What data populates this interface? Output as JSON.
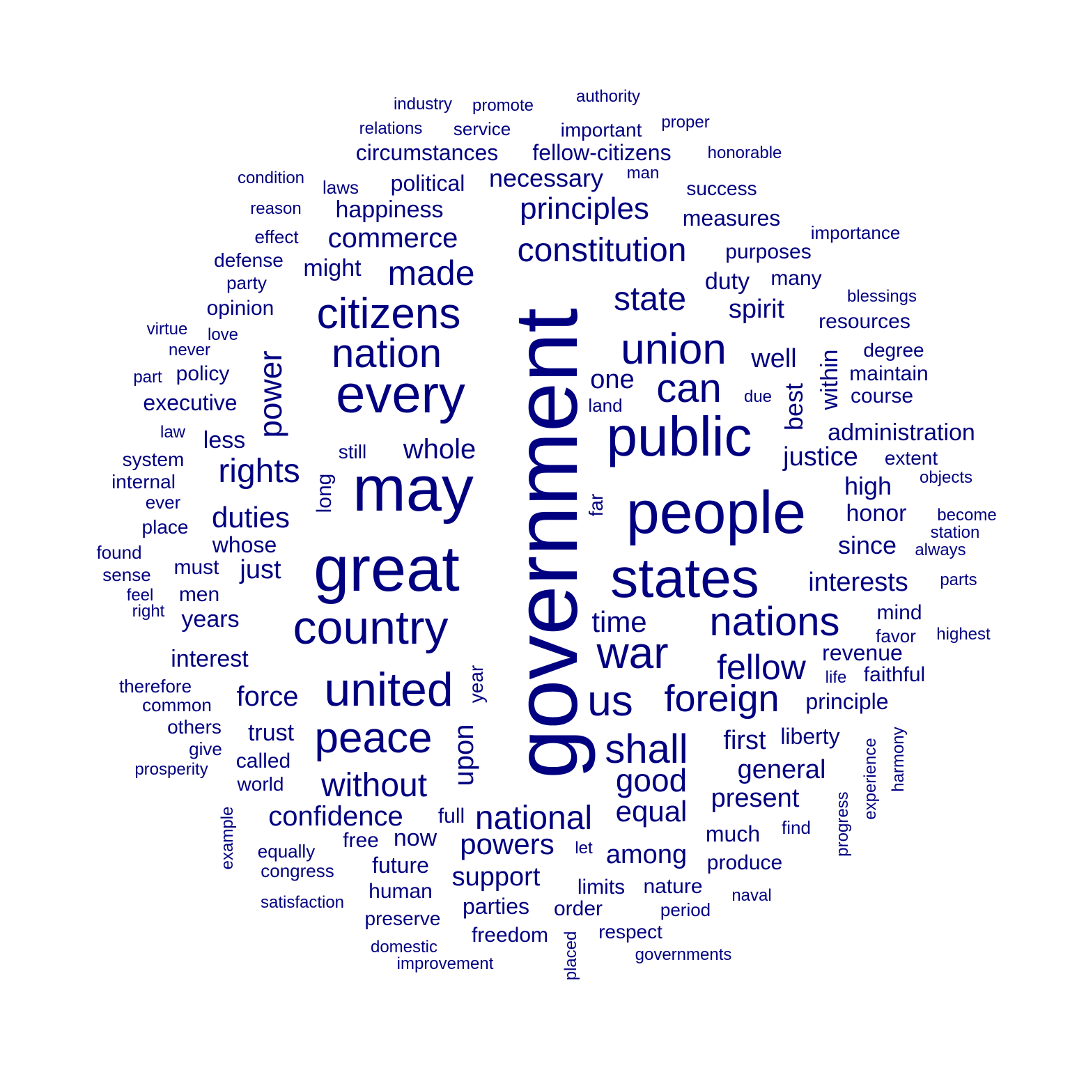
{
  "color": "#000080",
  "words": [
    {
      "text": "government"
    },
    {
      "text": "may"
    },
    {
      "text": "great"
    },
    {
      "text": "people"
    },
    {
      "text": "states"
    },
    {
      "text": "public"
    },
    {
      "text": "every"
    },
    {
      "text": "country"
    },
    {
      "text": "war"
    },
    {
      "text": "united"
    },
    {
      "text": "union"
    },
    {
      "text": "us"
    },
    {
      "text": "citizens"
    },
    {
      "text": "nation"
    },
    {
      "text": "peace"
    },
    {
      "text": "nations"
    },
    {
      "text": "can"
    },
    {
      "text": "foreign"
    },
    {
      "text": "shall"
    },
    {
      "text": "made"
    },
    {
      "text": "state"
    },
    {
      "text": "rights"
    },
    {
      "text": "fellow"
    },
    {
      "text": "national"
    },
    {
      "text": "constitution"
    },
    {
      "text": "without"
    },
    {
      "text": "good"
    },
    {
      "text": "power"
    },
    {
      "text": "principles"
    },
    {
      "text": "time"
    },
    {
      "text": "equal"
    },
    {
      "text": "upon"
    },
    {
      "text": "whole"
    },
    {
      "text": "confidence"
    },
    {
      "text": "powers"
    },
    {
      "text": "duties"
    },
    {
      "text": "force"
    },
    {
      "text": "commerce"
    },
    {
      "text": "among"
    },
    {
      "text": "present"
    },
    {
      "text": "interests"
    },
    {
      "text": "general"
    },
    {
      "text": "one"
    },
    {
      "text": "well"
    },
    {
      "text": "necessary"
    },
    {
      "text": "support"
    },
    {
      "text": "first"
    },
    {
      "text": "justice"
    },
    {
      "text": "spirit"
    },
    {
      "text": "best"
    },
    {
      "text": "just"
    },
    {
      "text": "high"
    },
    {
      "text": "happiness"
    },
    {
      "text": "within"
    },
    {
      "text": "since"
    },
    {
      "text": "administration"
    },
    {
      "text": "honor"
    },
    {
      "text": "duty"
    },
    {
      "text": "might"
    },
    {
      "text": "less"
    },
    {
      "text": "trust"
    },
    {
      "text": "years"
    },
    {
      "text": "interest"
    },
    {
      "text": "now"
    },
    {
      "text": "measures"
    },
    {
      "text": "revenue"
    },
    {
      "text": "liberty"
    },
    {
      "text": "principle"
    },
    {
      "text": "political"
    },
    {
      "text": "whose"
    },
    {
      "text": "much"
    },
    {
      "text": "executive"
    },
    {
      "text": "fellow-citizens"
    },
    {
      "text": "circumstances"
    },
    {
      "text": "long"
    },
    {
      "text": "must"
    },
    {
      "text": "men"
    },
    {
      "text": "parties"
    },
    {
      "text": "future"
    },
    {
      "text": "opinion"
    },
    {
      "text": "policy"
    },
    {
      "text": "order"
    },
    {
      "text": "limits"
    },
    {
      "text": "free"
    },
    {
      "text": "mind"
    },
    {
      "text": "nature"
    },
    {
      "text": "purposes"
    },
    {
      "text": "many"
    },
    {
      "text": "course"
    },
    {
      "text": "resources"
    },
    {
      "text": "maintain"
    },
    {
      "text": "produce"
    },
    {
      "text": "called"
    },
    {
      "text": "human"
    },
    {
      "text": "full"
    },
    {
      "text": "extent"
    },
    {
      "text": "faithful"
    },
    {
      "text": "success"
    },
    {
      "text": "system"
    },
    {
      "text": "freedom"
    },
    {
      "text": "important"
    },
    {
      "text": "degree"
    },
    {
      "text": "defense"
    },
    {
      "text": "year"
    },
    {
      "text": "still"
    },
    {
      "text": "place"
    },
    {
      "text": "internal"
    },
    {
      "text": "preserve"
    },
    {
      "text": "far"
    },
    {
      "text": "world"
    },
    {
      "text": "others"
    },
    {
      "text": "respect"
    },
    {
      "text": "period"
    },
    {
      "text": "found"
    },
    {
      "text": "party"
    },
    {
      "text": "service"
    },
    {
      "text": "equally"
    },
    {
      "text": "congress"
    },
    {
      "text": "laws"
    },
    {
      "text": "favor"
    },
    {
      "text": "land"
    },
    {
      "text": "effect"
    },
    {
      "text": "importance"
    },
    {
      "text": "ever"
    },
    {
      "text": "common"
    },
    {
      "text": "therefore"
    },
    {
      "text": "objects"
    },
    {
      "text": "station"
    },
    {
      "text": "become"
    },
    {
      "text": "always"
    },
    {
      "text": "relations"
    },
    {
      "text": "industry"
    },
    {
      "text": "promote"
    },
    {
      "text": "proper"
    },
    {
      "text": "authority"
    },
    {
      "text": "honorable"
    },
    {
      "text": "sense"
    },
    {
      "text": "give"
    },
    {
      "text": "find"
    },
    {
      "text": "experience"
    },
    {
      "text": "progress"
    },
    {
      "text": "harmony"
    },
    {
      "text": "blessings"
    },
    {
      "text": "governments"
    },
    {
      "text": "improvement"
    },
    {
      "text": "domestic"
    },
    {
      "text": "satisfaction"
    },
    {
      "text": "naval"
    },
    {
      "text": "placed"
    },
    {
      "text": "let"
    },
    {
      "text": "man"
    },
    {
      "text": "condition"
    },
    {
      "text": "reason"
    },
    {
      "text": "love"
    },
    {
      "text": "virtue"
    },
    {
      "text": "never"
    },
    {
      "text": "part"
    },
    {
      "text": "law"
    },
    {
      "text": "feel"
    },
    {
      "text": "right"
    },
    {
      "text": "prosperity"
    },
    {
      "text": "example"
    },
    {
      "text": "due"
    },
    {
      "text": "life"
    },
    {
      "text": "highest"
    },
    {
      "text": "parts"
    }
  ]
}
